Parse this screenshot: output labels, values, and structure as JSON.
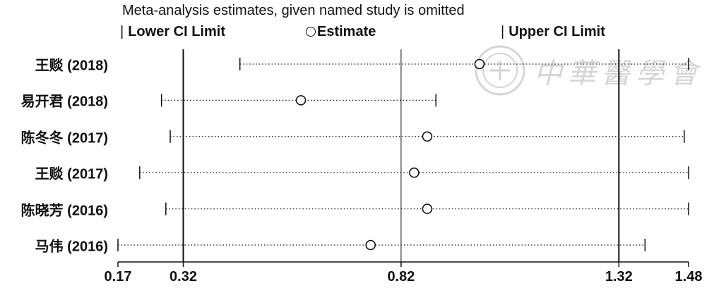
{
  "chart_data": {
    "type": "forest",
    "title": "Meta-analysis estimates, given named study is omitted",
    "legend": {
      "lower": "Lower CI Limit",
      "estimate": "Estimate",
      "upper": "Upper CI Limit"
    },
    "x_ticks": [
      "0.17",
      "0.32",
      "0.82",
      "1.32",
      "1.48"
    ],
    "x_tick_values": [
      0.17,
      0.32,
      0.82,
      1.32,
      1.48
    ],
    "reference_lines": [
      0.32,
      0.82,
      1.32
    ],
    "xlim": [
      0.17,
      1.48
    ],
    "studies": [
      {
        "label": "王赕 (2018)",
        "lower": 0.45,
        "estimate": 1.0,
        "upper": 1.48
      },
      {
        "label": "易开君 (2018)",
        "lower": 0.27,
        "estimate": 0.59,
        "upper": 0.9
      },
      {
        "label": "陈冬冬 (2017)",
        "lower": 0.29,
        "estimate": 0.88,
        "upper": 1.47
      },
      {
        "label": "王赕 (2017)",
        "lower": 0.22,
        "estimate": 0.85,
        "upper": 1.48
      },
      {
        "label": "陈晓芳 (2016)",
        "lower": 0.28,
        "estimate": 0.88,
        "upper": 1.48
      },
      {
        "label": "马伟 (2016)",
        "lower": 0.17,
        "estimate": 0.75,
        "upper": 1.38
      }
    ]
  },
  "watermark": {
    "text": "中華醫學會"
  }
}
